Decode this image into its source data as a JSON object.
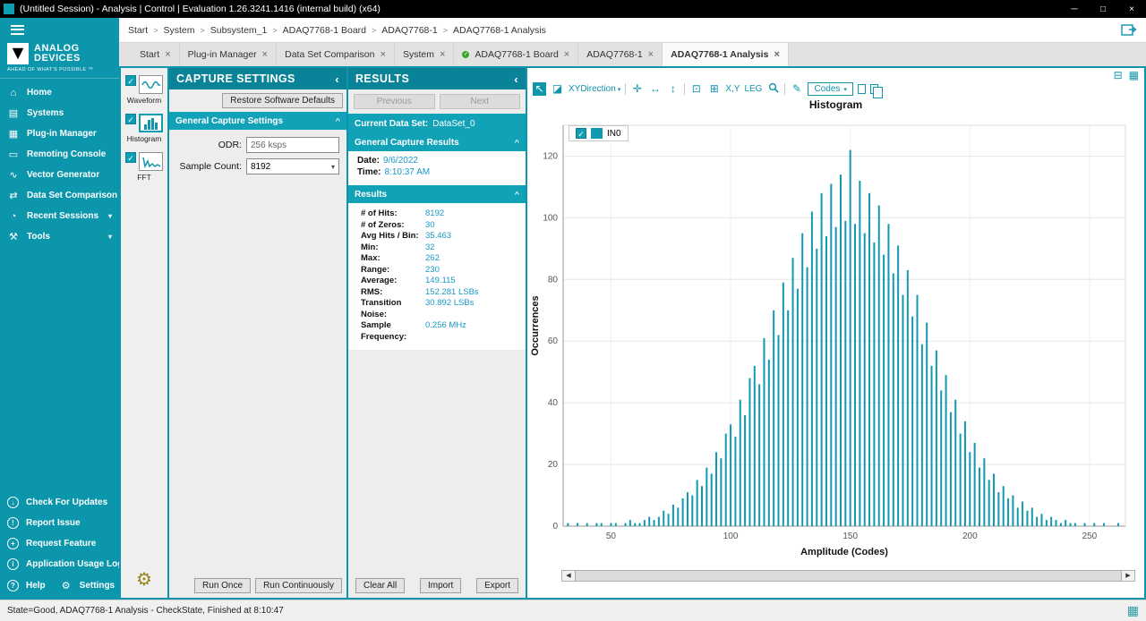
{
  "window": {
    "title": "(Untitled Session) - Analysis | Control | Evaluation 1.26.3241.1416 (internal build) (x64)"
  },
  "breadcrumb": {
    "separator": ">",
    "items": [
      "Start",
      "System",
      "Subsystem_1",
      "ADAQ7768-1 Board",
      "ADAQ7768-1",
      "ADAQ7768-1 Analysis"
    ]
  },
  "sidebar": {
    "brand": {
      "line1": "ANALOG",
      "line2": "DEVICES",
      "tagline": "AHEAD OF WHAT'S POSSIBLE ™"
    },
    "items": [
      {
        "label": "Home",
        "icon": "home-icon"
      },
      {
        "label": "Systems",
        "icon": "systems-icon"
      },
      {
        "label": "Plug-in Manager",
        "icon": "plugin-icon"
      },
      {
        "label": "Remoting Console",
        "icon": "console-icon"
      },
      {
        "label": "Vector Generator",
        "icon": "waveform-icon"
      },
      {
        "label": "Data Set Comparison",
        "icon": "compare-icon"
      },
      {
        "label": "Recent Sessions",
        "icon": "clock-icon",
        "expandable": true
      },
      {
        "label": "Tools",
        "icon": "tools-icon",
        "expandable": true
      }
    ],
    "footer_items": [
      {
        "label": "Check For Updates",
        "icon": "update-icon"
      },
      {
        "label": "Report Issue",
        "icon": "report-icon"
      },
      {
        "label": "Request Feature",
        "icon": "feature-icon"
      },
      {
        "label": "Application Usage Logging",
        "icon": "info-icon"
      },
      {
        "label": "Help",
        "icon": "help-icon"
      },
      {
        "label": "Settings",
        "icon": "gear-icon"
      }
    ]
  },
  "tabs": [
    {
      "label": "Start"
    },
    {
      "label": "Plug-in Manager"
    },
    {
      "label": "Data Set Comparison"
    },
    {
      "label": "System"
    },
    {
      "label": "ADAQ7768-1 Board",
      "status_dot": true
    },
    {
      "label": "ADAQ7768-1"
    },
    {
      "label": "ADAQ7768-1 Analysis",
      "active": true
    }
  ],
  "analysis_strip": {
    "items": [
      {
        "label": "Waveform",
        "checked": true
      },
      {
        "label": "Histogram",
        "checked": true,
        "selected": true
      },
      {
        "label": "FFT",
        "checked": true
      }
    ]
  },
  "capture_settings": {
    "title": "CAPTURE SETTINGS",
    "restore_button": "Restore Software Defaults",
    "section": "General Capture Settings",
    "odr_label": "ODR:",
    "odr_value": "256 ksps",
    "sample_count_label": "Sample Count:",
    "sample_count_value": "8192",
    "run_once": "Run Once",
    "run_continuously": "Run Continuously"
  },
  "results_panel": {
    "title": "RESULTS",
    "previous": "Previous",
    "next": "Next",
    "current_data_set_label": "Current Data Set:",
    "current_data_set_value": "DataSet_0",
    "general_section": "General Capture Results",
    "date_label": "Date:",
    "date_value": "9/6/2022",
    "time_label": "Time:",
    "time_value": "8:10:37 AM",
    "results_section": "Results",
    "stats": [
      {
        "label": "# of Hits:",
        "value": "8192"
      },
      {
        "label": "# of Zeros:",
        "value": "30"
      },
      {
        "label": "Avg Hits / Bin:",
        "value": "35.463"
      },
      {
        "label": "Min:",
        "value": "32"
      },
      {
        "label": "Max:",
        "value": "262"
      },
      {
        "label": "Range:",
        "value": "230"
      },
      {
        "label": "Average:",
        "value": "149.115"
      },
      {
        "label": "RMS:",
        "value": "152.281 LSBs"
      },
      {
        "label": "Transition Noise:",
        "value": "30.892 LSBs"
      },
      {
        "label": "Sample Frequency:",
        "value": "0.256 MHz"
      }
    ],
    "clear_all": "Clear All",
    "import": "Import",
    "export": "Export"
  },
  "chart_toolbar": {
    "xy_direction": "XYDirection",
    "axes_button": "X,Y",
    "legend_button": "LEG",
    "codes_dropdown": "Codes"
  },
  "chart_data": {
    "type": "bar",
    "title": "Histogram",
    "xlabel": "Amplitude (Codes)",
    "ylabel": "Occurrences",
    "legend": [
      {
        "label": "IN0",
        "color": "#1099b0"
      }
    ],
    "xlim": [
      30,
      265
    ],
    "ylim": [
      0,
      130
    ],
    "xticks": [
      50,
      100,
      150,
      200,
      250
    ],
    "yticks": [
      0,
      20,
      40,
      60,
      80,
      100,
      120
    ],
    "grid": true,
    "bin_start": 32,
    "bin_step": 2,
    "values": [
      1,
      0,
      1,
      0,
      1,
      0,
      1,
      1,
      0,
      1,
      1,
      0,
      1,
      2,
      1,
      1,
      2,
      3,
      2,
      3,
      5,
      4,
      7,
      6,
      9,
      11,
      10,
      15,
      13,
      19,
      17,
      24,
      22,
      30,
      33,
      29,
      41,
      36,
      48,
      52,
      46,
      61,
      54,
      70,
      62,
      79,
      70,
      87,
      77,
      95,
      84,
      102,
      90,
      108,
      94,
      111,
      97,
      114,
      99,
      122,
      98,
      112,
      95,
      108,
      92,
      104,
      88,
      98,
      82,
      91,
      75,
      83,
      68,
      75,
      59,
      66,
      52,
      57,
      44,
      49,
      37,
      41,
      30,
      34,
      24,
      27,
      19,
      22,
      15,
      17,
      11,
      13,
      9,
      10,
      6,
      8,
      5,
      6,
      3,
      4,
      2,
      3,
      2,
      1,
      2,
      1,
      1,
      0,
      1,
      0,
      1,
      0,
      1,
      0,
      0,
      1
    ]
  },
  "status_bar": {
    "text": "State=Good, ADAQ7768-1 Analysis - CheckState, Finished at 8:10:47"
  }
}
